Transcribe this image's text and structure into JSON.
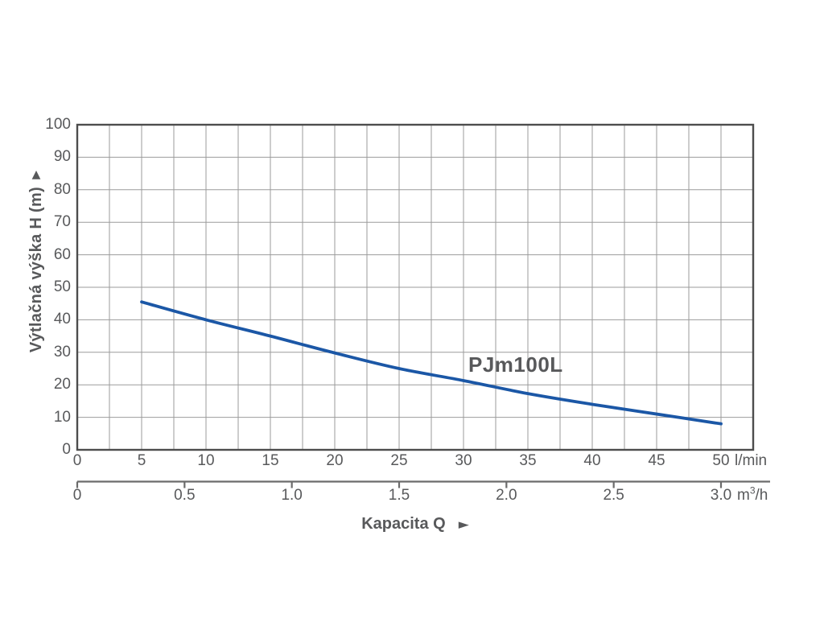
{
  "chart": {
    "series_label": "PJm100L",
    "colors": {
      "curve": "#1b57a6",
      "grid": "#9b9b9b",
      "border": "#4d4d4d",
      "text": "#58595b",
      "axis2": "#6b6b6b"
    },
    "y_axis": {
      "label": "Výtlačná výška H (m)",
      "arrow_glyph": "▲",
      "ticks": [
        "100",
        "90",
        "80",
        "70",
        "60",
        "50",
        "40",
        "30",
        "20",
        "10",
        "0"
      ]
    },
    "x_axis": {
      "label": "Kapacita Q",
      "arrow_glyph": "►",
      "unit": "l/min",
      "ticks": [
        "0",
        "5",
        "10",
        "15",
        "20",
        "25",
        "30",
        "35",
        "40",
        "45",
        "50"
      ]
    },
    "x_axis2": {
      "unit_base": "m",
      "unit_sup": "3",
      "unit_rest": "/h",
      "ticks": [
        "0",
        "0.5",
        "1.0",
        "1.5",
        "2.0",
        "2.5",
        "3.0"
      ]
    }
  },
  "chart_data": {
    "type": "line",
    "title": "",
    "xlabel": "Kapacita Q",
    "ylabel": "Výtlačná výška H (m)",
    "x_units": [
      "l/min",
      "m3/h"
    ],
    "xlim_lmin": [
      0,
      52.5
    ],
    "ylim": [
      0,
      100
    ],
    "x_grid_step_lmin": 2.5,
    "y_grid_step": 10,
    "x_tick_step_lmin": 5,
    "x2_ticks_m3h": [
      0,
      0.5,
      1.0,
      1.5,
      2.0,
      2.5,
      3.0
    ],
    "lmin_per_m3h": 16.6667,
    "grid": true,
    "legend": "inline-label",
    "series": [
      {
        "name": "PJm100L",
        "x_lmin": [
          5,
          10,
          15,
          20,
          25,
          30,
          35,
          40,
          45,
          50
        ],
        "y_m": [
          45.5,
          40,
          35,
          29.8,
          25,
          21.3,
          17.3,
          14,
          11,
          8
        ]
      }
    ]
  }
}
